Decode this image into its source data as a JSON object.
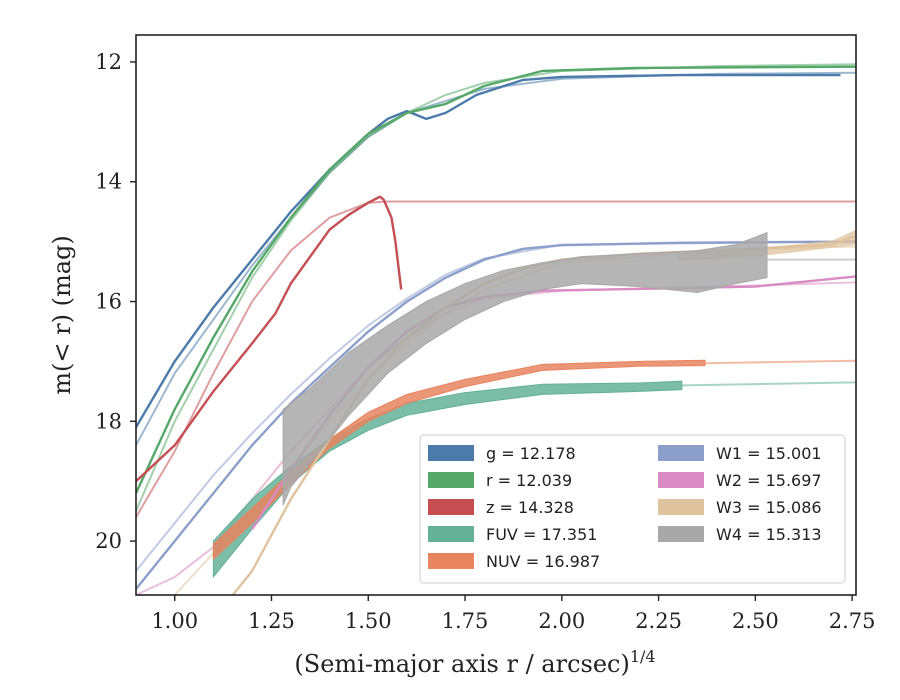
{
  "chart_data": {
    "type": "line",
    "xlabel": "(Semi-major axis r / arcsec)",
    "xlabel_sup": "1/4",
    "ylabel": "m(< r) (mag)",
    "xlim": [
      0.9,
      2.76
    ],
    "ylim": [
      20.9,
      11.55
    ],
    "y_inverted": true,
    "grid": false,
    "legend_position": "lower-right",
    "x_ticks": [
      "1.00",
      "1.25",
      "1.50",
      "1.75",
      "2.00",
      "2.25",
      "2.50",
      "2.75"
    ],
    "x_tick_values": [
      1.0,
      1.25,
      1.5,
      1.75,
      2.0,
      2.25,
      2.5,
      2.75
    ],
    "y_ticks": [
      "12",
      "14",
      "16",
      "18",
      "20"
    ],
    "y_tick_values": [
      12,
      14,
      16,
      18,
      20
    ],
    "series": [
      {
        "name": "g",
        "legend_label": "g = 12.178",
        "color": "#4c7bab",
        "band": false,
        "main": [
          [
            0.9,
            18.1
          ],
          [
            1.0,
            17.0
          ],
          [
            1.1,
            16.1
          ],
          [
            1.2,
            15.3
          ],
          [
            1.3,
            14.5
          ],
          [
            1.4,
            13.8
          ],
          [
            1.5,
            13.2
          ],
          [
            1.55,
            12.95
          ],
          [
            1.6,
            12.82
          ],
          [
            1.65,
            12.95
          ],
          [
            1.7,
            12.85
          ],
          [
            1.78,
            12.55
          ],
          [
            1.9,
            12.3
          ],
          [
            2.0,
            12.25
          ],
          [
            2.3,
            12.22
          ],
          [
            2.72,
            12.22
          ]
        ],
        "faint": [
          [
            0.9,
            18.4
          ],
          [
            1.0,
            17.2
          ],
          [
            1.1,
            16.3
          ],
          [
            1.2,
            15.4
          ],
          [
            1.3,
            14.6
          ],
          [
            1.4,
            13.85
          ],
          [
            1.5,
            13.25
          ],
          [
            1.6,
            12.85
          ],
          [
            1.7,
            12.65
          ],
          [
            1.8,
            12.45
          ],
          [
            2.0,
            12.28
          ],
          [
            2.4,
            12.2
          ],
          [
            2.76,
            12.18
          ]
        ]
      },
      {
        "name": "r",
        "legend_label": "r = 12.039",
        "color": "#55a868",
        "band": false,
        "main": [
          [
            0.9,
            19.2
          ],
          [
            1.0,
            17.8
          ],
          [
            1.1,
            16.6
          ],
          [
            1.2,
            15.5
          ],
          [
            1.3,
            14.6
          ],
          [
            1.4,
            13.8
          ],
          [
            1.5,
            13.2
          ],
          [
            1.6,
            12.85
          ],
          [
            1.7,
            12.7
          ],
          [
            1.8,
            12.4
          ],
          [
            1.95,
            12.15
          ],
          [
            2.2,
            12.1
          ],
          [
            2.76,
            12.08
          ]
        ],
        "faint": [
          [
            0.9,
            19.5
          ],
          [
            1.0,
            18.0
          ],
          [
            1.1,
            16.8
          ],
          [
            1.2,
            15.6
          ],
          [
            1.3,
            14.65
          ],
          [
            1.4,
            13.85
          ],
          [
            1.5,
            13.25
          ],
          [
            1.6,
            12.85
          ],
          [
            1.7,
            12.55
          ],
          [
            1.8,
            12.35
          ],
          [
            2.0,
            12.15
          ],
          [
            2.4,
            12.07
          ],
          [
            2.76,
            12.04
          ]
        ]
      },
      {
        "name": "z",
        "legend_label": "z = 14.328",
        "color": "#c44e52",
        "band": false,
        "main": [
          [
            0.9,
            19.0
          ],
          [
            1.0,
            18.4
          ],
          [
            1.1,
            17.5
          ],
          [
            1.2,
            16.7
          ],
          [
            1.26,
            16.2
          ],
          [
            1.3,
            15.7
          ],
          [
            1.4,
            14.8
          ],
          [
            1.45,
            14.55
          ],
          [
            1.5,
            14.35
          ],
          [
            1.53,
            14.25
          ],
          [
            1.54,
            14.3
          ],
          [
            1.56,
            14.6
          ],
          [
            1.57,
            15.0
          ],
          [
            1.585,
            15.8
          ]
        ],
        "faint": [
          [
            0.9,
            19.6
          ],
          [
            1.0,
            18.5
          ],
          [
            1.1,
            17.2
          ],
          [
            1.2,
            16.0
          ],
          [
            1.3,
            15.15
          ],
          [
            1.4,
            14.6
          ],
          [
            1.5,
            14.35
          ],
          [
            1.55,
            14.33
          ],
          [
            2.0,
            14.33
          ],
          [
            2.76,
            14.33
          ]
        ]
      },
      {
        "name": "FUV",
        "legend_label": "FUV = 17.351",
        "color": "#64b198",
        "band": true,
        "upper": [
          [
            1.1,
            20.0
          ],
          [
            1.2,
            19.3
          ],
          [
            1.3,
            18.75
          ],
          [
            1.4,
            18.3
          ],
          [
            1.5,
            17.95
          ],
          [
            1.6,
            17.7
          ],
          [
            1.75,
            17.52
          ],
          [
            1.95,
            17.38
          ],
          [
            2.2,
            17.36
          ],
          [
            2.31,
            17.33
          ]
        ],
        "lower": [
          [
            1.1,
            20.6
          ],
          [
            1.2,
            19.8
          ],
          [
            1.3,
            19.05
          ],
          [
            1.4,
            18.5
          ],
          [
            1.5,
            18.15
          ],
          [
            1.6,
            17.9
          ],
          [
            1.75,
            17.72
          ],
          [
            1.95,
            17.55
          ],
          [
            2.2,
            17.5
          ],
          [
            2.31,
            17.47
          ]
        ],
        "faint": [
          [
            2.31,
            17.4
          ],
          [
            2.76,
            17.35
          ]
        ]
      },
      {
        "name": "NUV",
        "legend_label": "NUV = 16.987",
        "color": "#e8845f",
        "band": true,
        "upper": [
          [
            1.1,
            20.05
          ],
          [
            1.2,
            19.45
          ],
          [
            1.3,
            18.85
          ],
          [
            1.4,
            18.3
          ],
          [
            1.5,
            17.85
          ],
          [
            1.6,
            17.55
          ],
          [
            1.75,
            17.3
          ],
          [
            1.95,
            17.05
          ],
          [
            2.2,
            17.0
          ],
          [
            2.37,
            16.98
          ]
        ],
        "lower": [
          [
            1.1,
            20.3
          ],
          [
            1.2,
            19.7
          ],
          [
            1.3,
            19.05
          ],
          [
            1.4,
            18.45
          ],
          [
            1.5,
            18.0
          ],
          [
            1.6,
            17.7
          ],
          [
            1.75,
            17.42
          ],
          [
            1.95,
            17.15
          ],
          [
            2.2,
            17.08
          ],
          [
            2.37,
            17.07
          ]
        ],
        "faint": [
          [
            2.37,
            17.03
          ],
          [
            2.76,
            16.99
          ]
        ]
      },
      {
        "name": "W1",
        "legend_label": "W1 = 15.001",
        "color": "#8c9fcb",
        "band": false,
        "main": [
          [
            0.9,
            20.8
          ],
          [
            1.0,
            20.0
          ],
          [
            1.1,
            19.2
          ],
          [
            1.2,
            18.4
          ],
          [
            1.3,
            17.7
          ],
          [
            1.4,
            17.1
          ],
          [
            1.5,
            16.5
          ],
          [
            1.6,
            16.0
          ],
          [
            1.7,
            15.6
          ],
          [
            1.8,
            15.3
          ],
          [
            1.9,
            15.12
          ],
          [
            2.0,
            15.06
          ],
          [
            2.3,
            15.02
          ],
          [
            2.76,
            15.0
          ]
        ],
        "faint": [
          [
            0.9,
            20.5
          ],
          [
            1.0,
            19.7
          ],
          [
            1.1,
            18.9
          ],
          [
            1.2,
            18.2
          ],
          [
            1.3,
            17.55
          ],
          [
            1.4,
            16.95
          ],
          [
            1.5,
            16.4
          ],
          [
            1.6,
            15.95
          ],
          [
            1.7,
            15.55
          ],
          [
            1.8,
            15.28
          ],
          [
            2.0,
            15.05
          ],
          [
            2.76,
            15.0
          ]
        ]
      },
      {
        "name": "W2",
        "legend_label": "W2 = 15.697",
        "color": "#da8bc3",
        "band": false,
        "main": [
          [
            1.2,
            19.8
          ],
          [
            1.3,
            18.8
          ],
          [
            1.4,
            17.9
          ],
          [
            1.5,
            17.1
          ],
          [
            1.6,
            16.5
          ],
          [
            1.7,
            16.1
          ],
          [
            1.8,
            15.92
          ],
          [
            1.95,
            15.82
          ],
          [
            2.2,
            15.79
          ],
          [
            2.5,
            15.75
          ],
          [
            2.76,
            15.58
          ]
        ],
        "faint": [
          [
            0.9,
            20.9
          ],
          [
            1.0,
            20.6
          ],
          [
            1.1,
            20.1
          ],
          [
            1.2,
            19.3
          ],
          [
            1.3,
            18.5
          ],
          [
            1.4,
            17.8
          ],
          [
            1.5,
            17.1
          ],
          [
            1.6,
            16.6
          ],
          [
            1.7,
            16.2
          ],
          [
            1.8,
            15.95
          ],
          [
            2.0,
            15.82
          ],
          [
            2.4,
            15.75
          ],
          [
            2.76,
            15.68
          ]
        ]
      },
      {
        "name": "W3",
        "legend_label": "W3 = 15.086",
        "color": "#dfc29e",
        "band": false,
        "main": [
          [
            1.15,
            20.9
          ],
          [
            1.2,
            20.5
          ],
          [
            1.3,
            19.3
          ],
          [
            1.4,
            18.3
          ],
          [
            1.5,
            17.3
          ],
          [
            1.6,
            16.6
          ],
          [
            1.7,
            16.1
          ],
          [
            1.8,
            15.7
          ],
          [
            1.9,
            15.45
          ],
          [
            2.0,
            15.3
          ],
          [
            2.2,
            15.2
          ],
          [
            2.4,
            15.15
          ],
          [
            2.55,
            15.1
          ],
          [
            2.7,
            15.05
          ],
          [
            2.76,
            14.9
          ]
        ],
        "band_upper": [
          [
            2.3,
            15.18
          ],
          [
            2.5,
            15.1
          ],
          [
            2.6,
            15.05
          ],
          [
            2.7,
            14.98
          ],
          [
            2.76,
            14.8
          ]
        ],
        "band_lower": [
          [
            2.3,
            15.32
          ],
          [
            2.5,
            15.25
          ],
          [
            2.6,
            15.18
          ],
          [
            2.7,
            15.1
          ],
          [
            2.76,
            15.05
          ]
        ],
        "faint": [
          [
            1.0,
            20.9
          ],
          [
            1.1,
            20.2
          ],
          [
            1.2,
            19.5
          ],
          [
            1.3,
            18.8
          ],
          [
            1.4,
            18.0
          ],
          [
            1.5,
            17.3
          ],
          [
            1.6,
            16.7
          ],
          [
            1.7,
            16.2
          ],
          [
            1.8,
            15.8
          ],
          [
            2.0,
            15.35
          ],
          [
            2.4,
            15.15
          ],
          [
            2.76,
            15.08
          ]
        ]
      },
      {
        "name": "W4",
        "legend_label": "W4 = 15.313",
        "color": "#a8a8a8",
        "band": true,
        "upper": [
          [
            1.28,
            17.8
          ],
          [
            1.35,
            17.45
          ],
          [
            1.45,
            16.85
          ],
          [
            1.55,
            16.4
          ],
          [
            1.65,
            16.0
          ],
          [
            1.75,
            15.7
          ],
          [
            1.85,
            15.48
          ],
          [
            1.95,
            15.35
          ],
          [
            2.05,
            15.25
          ],
          [
            2.2,
            15.2
          ],
          [
            2.35,
            15.15
          ],
          [
            2.45,
            15.05
          ],
          [
            2.53,
            14.85
          ]
        ],
        "lower": [
          [
            1.28,
            19.4
          ],
          [
            1.3,
            19.1
          ],
          [
            1.35,
            18.7
          ],
          [
            1.45,
            17.9
          ],
          [
            1.55,
            17.2
          ],
          [
            1.65,
            16.7
          ],
          [
            1.75,
            16.3
          ],
          [
            1.85,
            16.0
          ],
          [
            1.95,
            15.8
          ],
          [
            2.05,
            15.7
          ],
          [
            2.2,
            15.75
          ],
          [
            2.35,
            15.85
          ],
          [
            2.45,
            15.7
          ],
          [
            2.53,
            15.6
          ]
        ],
        "faint": [
          [
            2.53,
            15.3
          ],
          [
            2.76,
            15.3
          ]
        ]
      }
    ]
  }
}
